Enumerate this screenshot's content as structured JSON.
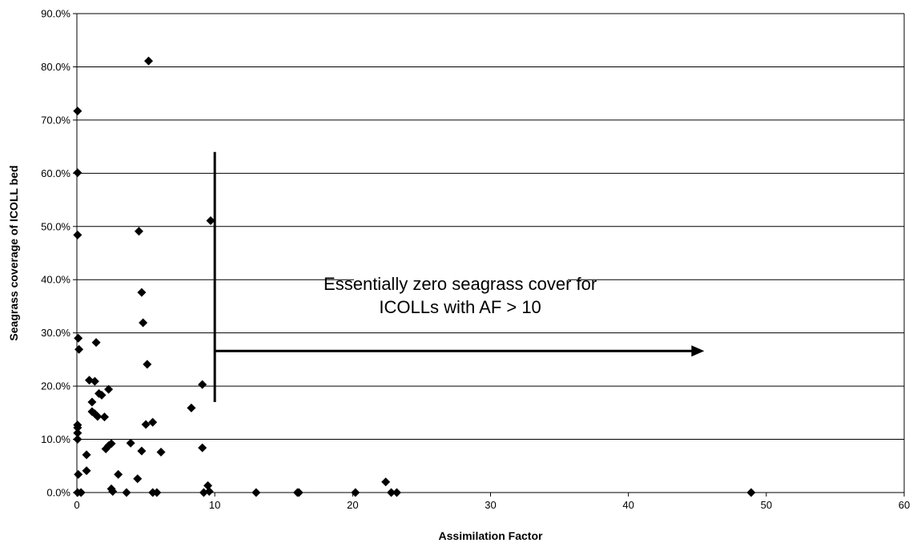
{
  "chart_data": {
    "type": "scatter",
    "xlabel": "Assimilation Factor",
    "ylabel": "Seagrass coverage of ICOLL bed",
    "xlim": [
      0,
      60
    ],
    "ylim": [
      0,
      90
    ],
    "x_ticks": [
      "0",
      "10",
      "20",
      "30",
      "40",
      "50",
      "60"
    ],
    "y_ticks": [
      "0.0%",
      "10.0%",
      "20.0%",
      "30.0%",
      "40.0%",
      "50.0%",
      "60.0%",
      "70.0%",
      "80.0%",
      "90.0%"
    ],
    "y_unit": "percent",
    "grid": "horizontal",
    "marker": "diamond",
    "marker_color": "#000000",
    "annotation": {
      "lines": [
        "Essentially zero seagrass cover for",
        "ICOLLs with AF > 10"
      ],
      "vertical_line_x": 10,
      "vertical_line_y_range": [
        17,
        64
      ],
      "arrow_y": 26.6,
      "arrow_x_range": [
        10,
        45.5
      ]
    },
    "points": [
      {
        "x": 0.05,
        "y": 71.7
      },
      {
        "x": 0.05,
        "y": 60.1
      },
      {
        "x": 0.05,
        "y": 48.4
      },
      {
        "x": 0.1,
        "y": 29.0
      },
      {
        "x": 0.15,
        "y": 26.9
      },
      {
        "x": 0.05,
        "y": 12.7
      },
      {
        "x": 0.05,
        "y": 12.2
      },
      {
        "x": 0.05,
        "y": 11.2
      },
      {
        "x": 0.05,
        "y": 10.0
      },
      {
        "x": 0.1,
        "y": 3.4
      },
      {
        "x": 0.05,
        "y": 0.0
      },
      {
        "x": 0.3,
        "y": 0.0
      },
      {
        "x": 0.7,
        "y": 4.1
      },
      {
        "x": 0.7,
        "y": 7.1
      },
      {
        "x": 0.9,
        "y": 21.1
      },
      {
        "x": 1.1,
        "y": 17.0
      },
      {
        "x": 1.1,
        "y": 15.2
      },
      {
        "x": 1.3,
        "y": 20.9
      },
      {
        "x": 1.3,
        "y": 14.8
      },
      {
        "x": 1.4,
        "y": 28.2
      },
      {
        "x": 1.5,
        "y": 14.3
      },
      {
        "x": 1.6,
        "y": 18.6
      },
      {
        "x": 1.8,
        "y": 18.3
      },
      {
        "x": 2.0,
        "y": 14.2
      },
      {
        "x": 2.1,
        "y": 8.2
      },
      {
        "x": 2.3,
        "y": 19.4
      },
      {
        "x": 2.3,
        "y": 8.8
      },
      {
        "x": 2.5,
        "y": 9.2
      },
      {
        "x": 2.5,
        "y": 0.7
      },
      {
        "x": 2.6,
        "y": 0.2
      },
      {
        "x": 3.0,
        "y": 3.4
      },
      {
        "x": 3.6,
        "y": 0.0
      },
      {
        "x": 3.9,
        "y": 9.3
      },
      {
        "x": 4.4,
        "y": 2.6
      },
      {
        "x": 4.5,
        "y": 49.1
      },
      {
        "x": 4.7,
        "y": 37.6
      },
      {
        "x": 4.7,
        "y": 7.8
      },
      {
        "x": 4.8,
        "y": 31.9
      },
      {
        "x": 5.0,
        "y": 12.8
      },
      {
        "x": 5.1,
        "y": 24.1
      },
      {
        "x": 5.2,
        "y": 81.1
      },
      {
        "x": 5.5,
        "y": 13.2
      },
      {
        "x": 5.5,
        "y": 0.0
      },
      {
        "x": 5.8,
        "y": 0.0
      },
      {
        "x": 6.1,
        "y": 7.6
      },
      {
        "x": 8.3,
        "y": 15.9
      },
      {
        "x": 9.1,
        "y": 20.3
      },
      {
        "x": 9.1,
        "y": 8.4
      },
      {
        "x": 9.2,
        "y": 0.0
      },
      {
        "x": 9.5,
        "y": 1.3
      },
      {
        "x": 9.6,
        "y": 0.2
      },
      {
        "x": 9.7,
        "y": 51.1
      },
      {
        "x": 13.0,
        "y": 0.0
      },
      {
        "x": 16.0,
        "y": 0.0
      },
      {
        "x": 16.1,
        "y": 0.0
      },
      {
        "x": 20.2,
        "y": 0.0
      },
      {
        "x": 22.4,
        "y": 2.0
      },
      {
        "x": 22.8,
        "y": 0.0
      },
      {
        "x": 23.2,
        "y": 0.0
      },
      {
        "x": 48.9,
        "y": 0.0
      }
    ]
  }
}
